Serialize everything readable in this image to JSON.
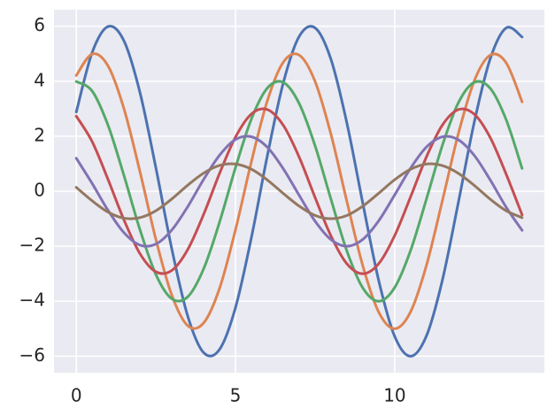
{
  "chart_data": {
    "type": "line",
    "x": [
      0,
      0.5,
      1,
      1.5,
      2,
      2.5,
      3,
      3.5,
      4,
      4.5,
      5,
      5.5,
      6,
      6.5,
      7,
      7.5,
      8,
      8.5,
      9,
      9.5,
      10,
      10.5,
      11,
      11.5,
      12,
      12.5,
      13,
      13.5,
      14
    ],
    "series": [
      {
        "color": "#4c72b0",
        "values": [
          2.88,
          5.05,
          5.99,
          5.46,
          3.59,
          0.85,
          -2.1,
          -4.54,
          -5.87,
          -5.75,
          -4.23,
          -1.68,
          1.29,
          3.94,
          5.63,
          5.94,
          4.79,
          2.47,
          -0.45,
          -3.26,
          -5.28,
          -6.0,
          -5.25,
          -3.22,
          -0.4,
          2.52,
          4.82,
          5.94,
          5.61
        ]
      },
      {
        "color": "#dd8452",
        "values": [
          4.21,
          4.99,
          4.55,
          2.99,
          0.71,
          -1.75,
          -3.78,
          -4.89,
          -4.79,
          -3.53,
          -1.4,
          1.08,
          3.29,
          4.69,
          4.95,
          3.99,
          2.06,
          -0.38,
          -2.72,
          -4.4,
          -5.0,
          -4.38,
          -2.68,
          -0.33,
          2.1,
          4.02,
          4.95,
          4.67,
          3.25
        ]
      },
      {
        "color": "#55a868",
        "values": [
          3.99,
          3.64,
          2.39,
          0.56,
          -1.4,
          -3.03,
          -3.91,
          -3.84,
          -2.82,
          -1.12,
          0.86,
          2.63,
          3.75,
          3.96,
          3.19,
          1.65,
          -0.3,
          -2.18,
          -3.52,
          -4.0,
          -3.5,
          -2.15,
          -0.27,
          1.68,
          3.22,
          3.96,
          3.74,
          2.6,
          0.83
        ]
      },
      {
        "color": "#c44e52",
        "values": [
          2.73,
          1.8,
          0.42,
          -1.05,
          -2.27,
          -2.93,
          -2.88,
          -2.12,
          -0.84,
          0.65,
          1.97,
          2.81,
          2.97,
          2.4,
          1.24,
          -0.23,
          -1.63,
          -2.64,
          -3.0,
          -2.63,
          -1.61,
          -0.2,
          1.26,
          2.41,
          2.97,
          2.8,
          1.95,
          0.62,
          -0.86
        ]
      },
      {
        "color": "#8172b3",
        "values": [
          1.2,
          0.28,
          -0.7,
          -1.51,
          -1.96,
          -1.92,
          -1.41,
          -0.56,
          0.43,
          1.31,
          1.88,
          1.98,
          1.6,
          0.82,
          -0.15,
          -1.09,
          -1.76,
          -2.0,
          -1.75,
          -1.07,
          -0.13,
          0.84,
          1.61,
          1.98,
          1.87,
          1.3,
          0.41,
          -0.58,
          -1.42
        ]
      },
      {
        "color": "#937860",
        "values": [
          0.14,
          -0.35,
          -0.76,
          -0.98,
          -0.96,
          -0.71,
          -0.28,
          0.22,
          0.66,
          0.94,
          0.99,
          0.8,
          0.41,
          -0.08,
          -0.54,
          -0.88,
          -1.0,
          -0.88,
          -0.54,
          -0.07,
          0.42,
          0.8,
          0.99,
          0.93,
          0.65,
          0.21,
          -0.29,
          -0.71,
          -0.96
        ]
      }
    ],
    "xlim": [
      -0.7,
      14.7
    ],
    "xticks": [
      0,
      5,
      10
    ],
    "ylim": [
      -6.6,
      6.6
    ],
    "yticks": [
      {
        "value": -6,
        "label": "−6"
      },
      {
        "value": -4,
        "label": "−4"
      },
      {
        "value": -2,
        "label": "−2"
      },
      0,
      2,
      4,
      6
    ],
    "grid": true,
    "background": "#eaeaf2"
  }
}
